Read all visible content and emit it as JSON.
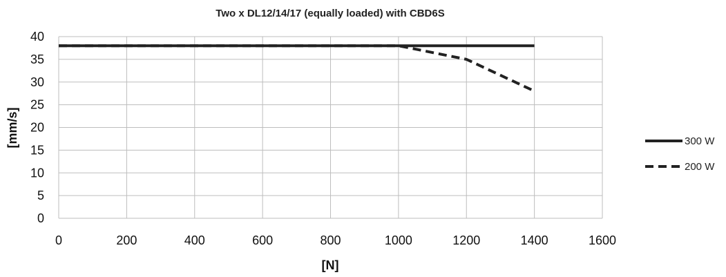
{
  "chart_data": {
    "type": "line",
    "title": "Two x DL12/14/17 (equally loaded) with CBD6S",
    "xlabel": "[N]",
    "ylabel": "[mm/s]",
    "xlim": [
      0,
      1600
    ],
    "ylim": [
      0,
      40
    ],
    "xticks": [
      0,
      200,
      400,
      600,
      800,
      1000,
      1200,
      1400,
      1600
    ],
    "yticks": [
      0,
      5,
      10,
      15,
      20,
      25,
      30,
      35,
      40
    ],
    "grid": true,
    "legend_position": "right",
    "series": [
      {
        "name": "300 W",
        "style": "solid",
        "color": "#222222",
        "x": [
          0,
          200,
          400,
          600,
          800,
          1000,
          1200,
          1400
        ],
        "y": [
          38,
          38,
          38,
          38,
          38,
          38,
          38,
          38
        ]
      },
      {
        "name": "200 W",
        "style": "dashed",
        "color": "#222222",
        "x": [
          0,
          200,
          400,
          600,
          800,
          1000,
          1200,
          1400
        ],
        "y": [
          38,
          38,
          38,
          38,
          38,
          38,
          35,
          28
        ]
      }
    ]
  }
}
